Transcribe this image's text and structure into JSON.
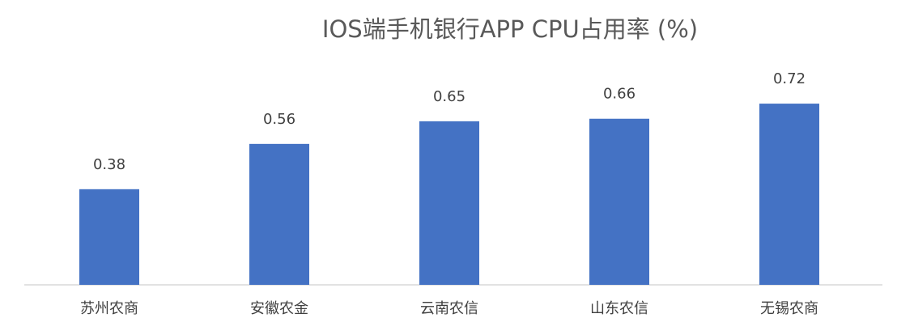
{
  "chart_data": {
    "type": "bar",
    "title": "IOS端手机银行APP CPU占用率 (%)",
    "categories": [
      "苏州农商",
      "安徽农金",
      "云南农信",
      "山东农信",
      "无锡农商"
    ],
    "values": [
      0.38,
      0.56,
      0.65,
      0.66,
      0.72
    ],
    "color": "#4472c4"
  }
}
